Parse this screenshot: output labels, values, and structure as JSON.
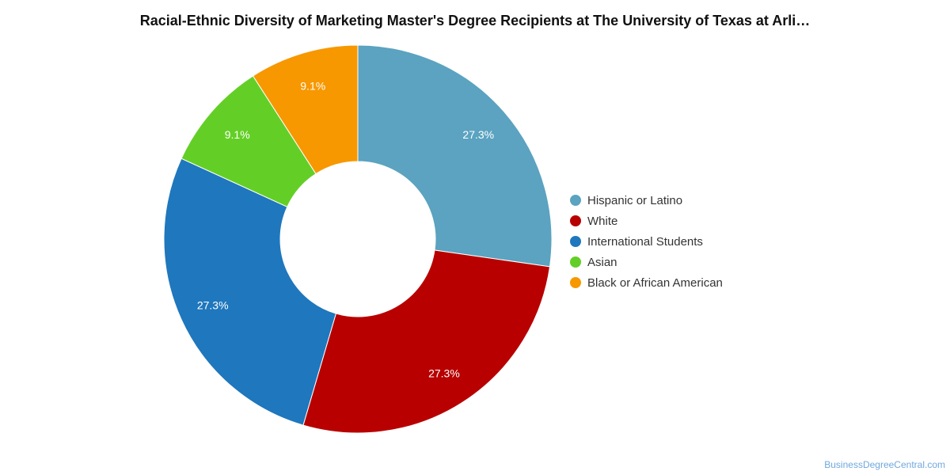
{
  "chart_data": {
    "type": "pie",
    "donut": true,
    "title": "Racial-Ethnic Diversity of Marketing Master's Degree Recipients at The University of Texas at Arli…",
    "legend_position": "right",
    "slices": [
      {
        "label": "Hispanic or Latino",
        "value": 27.3,
        "display": "27.3%",
        "color": "#5ba3c0"
      },
      {
        "label": "White",
        "value": 27.3,
        "display": "27.3%",
        "color": "#b80000"
      },
      {
        "label": "International Students",
        "value": 27.3,
        "display": "27.3%",
        "color": "#1f77bd"
      },
      {
        "label": "Asian",
        "value": 9.1,
        "display": "9.1%",
        "color": "#63cf26"
      },
      {
        "label": "Black or African American",
        "value": 9.1,
        "display": "9.1%",
        "color": "#f79800"
      }
    ]
  },
  "watermark": "BusinessDegreeCentral.com"
}
